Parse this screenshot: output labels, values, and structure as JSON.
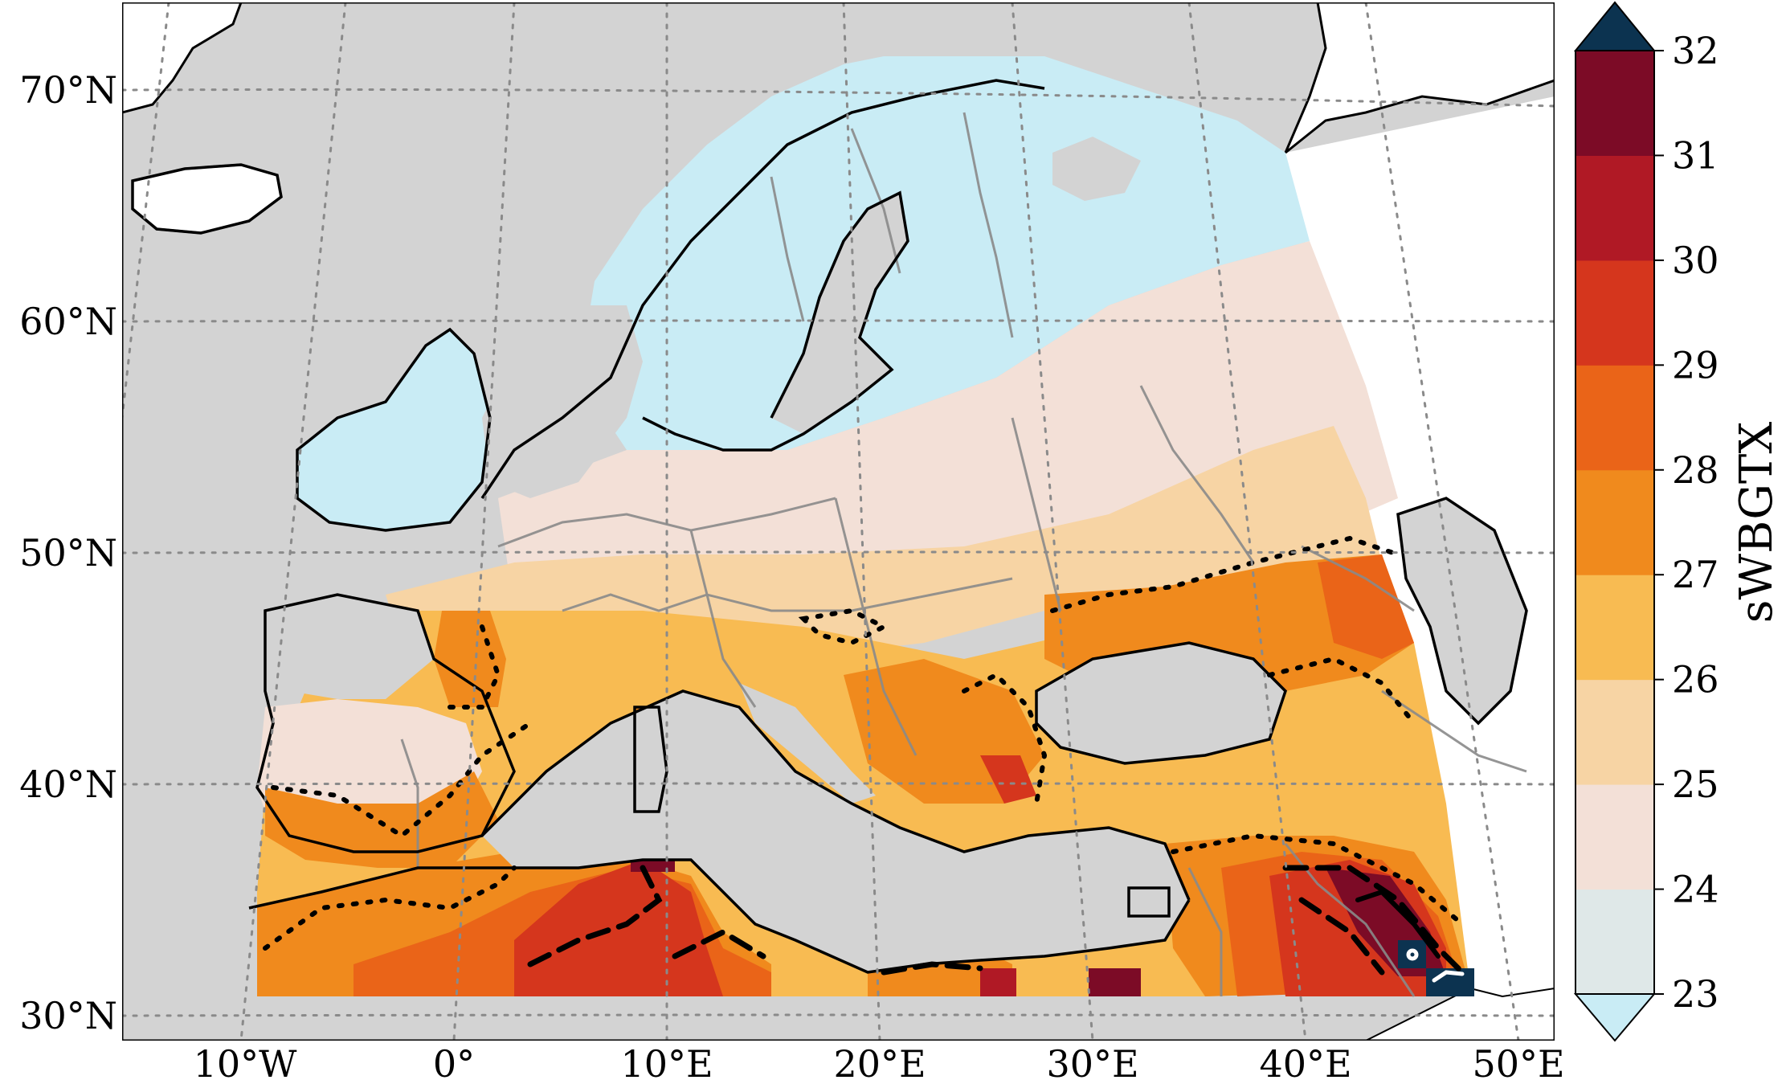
{
  "map": {
    "projection": "Lambert conformal (Europe)",
    "background_color": "#d3d3d3",
    "outside_data_color": "#ffffff",
    "gridlines": "dotted",
    "lat_labels": [
      "70°N",
      "60°N",
      "50°N",
      "40°N",
      "30°N"
    ],
    "lon_labels": [
      "10°W",
      "0°",
      "10°E",
      "20°E",
      "30°E",
      "40°E",
      "50°E"
    ],
    "overlays": [
      {
        "style": "dotted",
        "meaning": "contour"
      },
      {
        "style": "dashed",
        "meaning": "contour"
      },
      {
        "style": "solid",
        "meaning": "contour"
      }
    ]
  },
  "colorbar": {
    "title": "sWBGTX",
    "tick_labels": [
      "23",
      "24",
      "25",
      "26",
      "27",
      "28",
      "29",
      "30",
      "31",
      "32"
    ],
    "extend": "both",
    "under_color": "#c9ecf5",
    "over_color": "#0c3350",
    "colors": [
      "#dfe8e8",
      "#f3e0d7",
      "#f7d4a4",
      "#f8bb52",
      "#f08a1d",
      "#ea6418",
      "#d5361d",
      "#b01925",
      "#7c0b26"
    ]
  }
}
